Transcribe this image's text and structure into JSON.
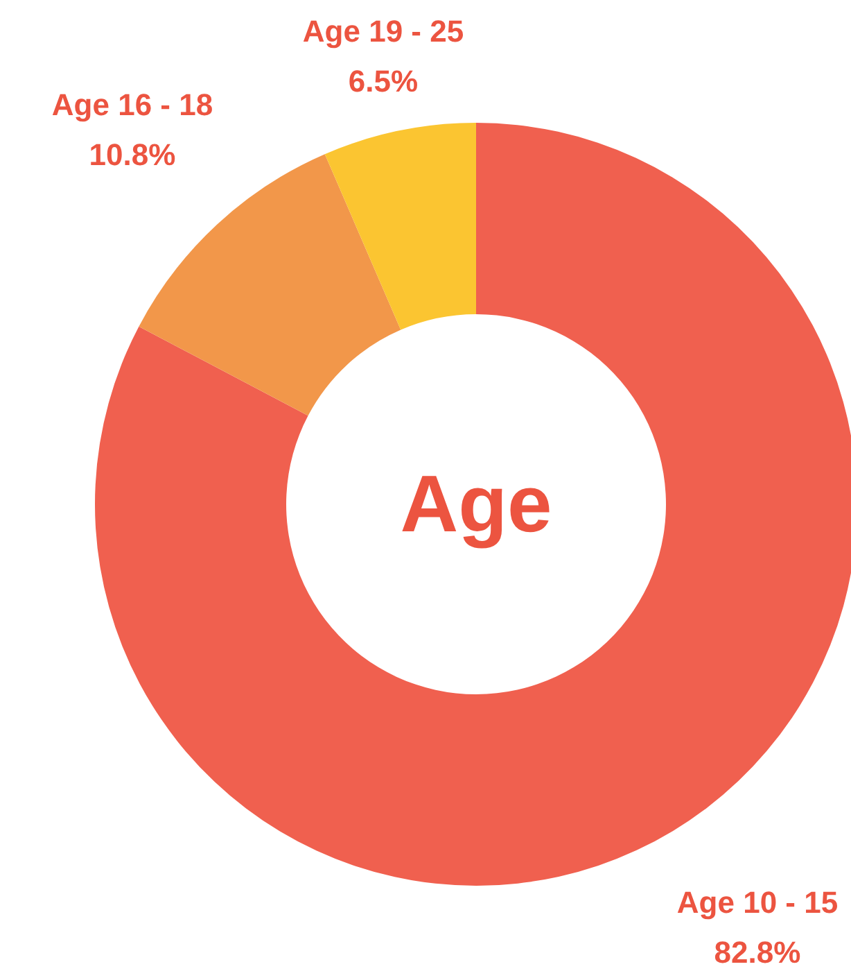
{
  "chart_data": {
    "type": "donut",
    "title": "Age",
    "categories": [
      "Age 10 - 15",
      "Age 16 - 18",
      "Age 19 - 25"
    ],
    "values": [
      82.8,
      10.8,
      6.5
    ],
    "colors": [
      "#f0604f",
      "#f2974a",
      "#fbc531"
    ],
    "value_labels": [
      "82.8%",
      "10.8%",
      "6.5%"
    ]
  }
}
